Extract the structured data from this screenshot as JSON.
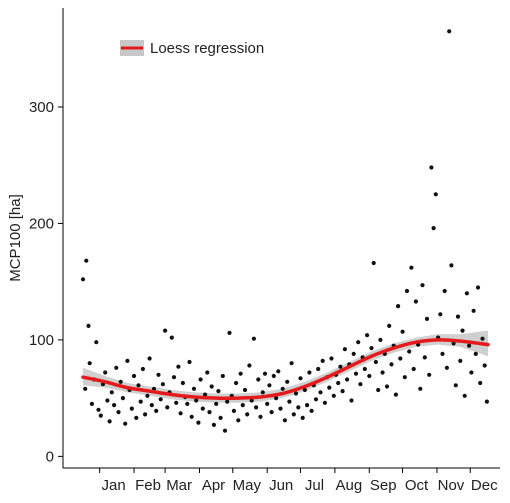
{
  "chart_data": {
    "type": "scatter",
    "ylabel": "MCP100 [ha]",
    "ylim": [
      -10,
      385
    ],
    "yticks": [
      0,
      100,
      200,
      300
    ],
    "x_domain": [
      0,
      365
    ],
    "x_ticks": [
      {
        "label": "Jan",
        "day": 15
      },
      {
        "label": "Feb",
        "day": 46
      },
      {
        "label": "Mar",
        "day": 74
      },
      {
        "label": "Apr",
        "day": 105
      },
      {
        "label": "May",
        "day": 135
      },
      {
        "label": "Jun",
        "day": 166
      },
      {
        "label": "Jul",
        "day": 196
      },
      {
        "label": "Aug",
        "day": 227
      },
      {
        "label": "Sep",
        "day": 258
      },
      {
        "label": "Oct",
        "day": 288
      },
      {
        "label": "Nov",
        "day": 319
      },
      {
        "label": "Dec",
        "day": 349
      }
    ],
    "legend": {
      "label": "Loess regression",
      "position": "top-left"
    },
    "colors": {
      "points": "#111111",
      "loess_line": "#e41a1c",
      "confidence_band": "#c8c8c8"
    },
    "loess": [
      {
        "day": 0,
        "y": 68,
        "lo": 61,
        "hi": 76
      },
      {
        "day": 20,
        "y": 64,
        "lo": 59,
        "hi": 69
      },
      {
        "day": 40,
        "y": 59,
        "lo": 55,
        "hi": 63
      },
      {
        "day": 60,
        "y": 56,
        "lo": 52,
        "hi": 60
      },
      {
        "day": 80,
        "y": 53,
        "lo": 49,
        "hi": 57
      },
      {
        "day": 100,
        "y": 51,
        "lo": 47,
        "hi": 55
      },
      {
        "day": 120,
        "y": 50,
        "lo": 46,
        "hi": 54
      },
      {
        "day": 140,
        "y": 50,
        "lo": 46,
        "hi": 54
      },
      {
        "day": 160,
        "y": 51,
        "lo": 47,
        "hi": 55
      },
      {
        "day": 180,
        "y": 54,
        "lo": 50,
        "hi": 58
      },
      {
        "day": 200,
        "y": 60,
        "lo": 56,
        "hi": 64
      },
      {
        "day": 220,
        "y": 68,
        "lo": 64,
        "hi": 72
      },
      {
        "day": 240,
        "y": 77,
        "lo": 73,
        "hi": 81
      },
      {
        "day": 260,
        "y": 86,
        "lo": 82,
        "hi": 90
      },
      {
        "day": 280,
        "y": 93,
        "lo": 89,
        "hi": 97
      },
      {
        "day": 300,
        "y": 98,
        "lo": 94,
        "hi": 102
      },
      {
        "day": 320,
        "y": 100,
        "lo": 96,
        "hi": 105
      },
      {
        "day": 340,
        "y": 99,
        "lo": 94,
        "hi": 105
      },
      {
        "day": 365,
        "y": 96,
        "lo": 86,
        "hi": 108
      }
    ],
    "points": [
      [
        0,
        152
      ],
      [
        3,
        168
      ],
      [
        5,
        112
      ],
      [
        2,
        58
      ],
      [
        6,
        80
      ],
      [
        8,
        45
      ],
      [
        10,
        66
      ],
      [
        12,
        98
      ],
      [
        14,
        40
      ],
      [
        16,
        35
      ],
      [
        18,
        62
      ],
      [
        20,
        72
      ],
      [
        22,
        48
      ],
      [
        24,
        30
      ],
      [
        26,
        55
      ],
      [
        28,
        44
      ],
      [
        30,
        76
      ],
      [
        32,
        38
      ],
      [
        34,
        64
      ],
      [
        36,
        50
      ],
      [
        38,
        28
      ],
      [
        40,
        82
      ],
      [
        42,
        57
      ],
      [
        44,
        41
      ],
      [
        46,
        69
      ],
      [
        48,
        33
      ],
      [
        50,
        61
      ],
      [
        52,
        47
      ],
      [
        54,
        75
      ],
      [
        56,
        36
      ],
      [
        58,
        52
      ],
      [
        60,
        84
      ],
      [
        62,
        44
      ],
      [
        64,
        58
      ],
      [
        66,
        39
      ],
      [
        68,
        70
      ],
      [
        70,
        49
      ],
      [
        72,
        62
      ],
      [
        74,
        108
      ],
      [
        76,
        42
      ],
      [
        78,
        55
      ],
      [
        80,
        102
      ],
      [
        82,
        68
      ],
      [
        84,
        46
      ],
      [
        86,
        77
      ],
      [
        88,
        37
      ],
      [
        90,
        63
      ],
      [
        92,
        51
      ],
      [
        94,
        45
      ],
      [
        96,
        81
      ],
      [
        98,
        34
      ],
      [
        100,
        58
      ],
      [
        102,
        48
      ],
      [
        104,
        29
      ],
      [
        106,
        66
      ],
      [
        108,
        41
      ],
      [
        110,
        53
      ],
      [
        112,
        72
      ],
      [
        114,
        38
      ],
      [
        116,
        60
      ],
      [
        118,
        27
      ],
      [
        120,
        45
      ],
      [
        122,
        56
      ],
      [
        124,
        33
      ],
      [
        126,
        69
      ],
      [
        128,
        22
      ],
      [
        130,
        47
      ],
      [
        132,
        106
      ],
      [
        134,
        52
      ],
      [
        136,
        39
      ],
      [
        138,
        63
      ],
      [
        140,
        31
      ],
      [
        142,
        71
      ],
      [
        144,
        44
      ],
      [
        146,
        57
      ],
      [
        148,
        36
      ],
      [
        150,
        78
      ],
      [
        152,
        48
      ],
      [
        154,
        101
      ],
      [
        156,
        42
      ],
      [
        158,
        66
      ],
      [
        160,
        34
      ],
      [
        162,
        55
      ],
      [
        164,
        71
      ],
      [
        166,
        45
      ],
      [
        168,
        61
      ],
      [
        170,
        38
      ],
      [
        172,
        69
      ],
      [
        174,
        50
      ],
      [
        176,
        73
      ],
      [
        178,
        41
      ],
      [
        180,
        58
      ],
      [
        182,
        31
      ],
      [
        184,
        64
      ],
      [
        186,
        47
      ],
      [
        188,
        80
      ],
      [
        190,
        36
      ],
      [
        192,
        54
      ],
      [
        194,
        42
      ],
      [
        196,
        67
      ],
      [
        198,
        33
      ],
      [
        200,
        57
      ],
      [
        202,
        44
      ],
      [
        204,
        72
      ],
      [
        206,
        39
      ],
      [
        208,
        61
      ],
      [
        210,
        49
      ],
      [
        212,
        75
      ],
      [
        214,
        55
      ],
      [
        216,
        82
      ],
      [
        218,
        46
      ],
      [
        220,
        68
      ],
      [
        222,
        59
      ],
      [
        224,
        84
      ],
      [
        226,
        52
      ],
      [
        228,
        70
      ],
      [
        230,
        63
      ],
      [
        232,
        77
      ],
      [
        234,
        56
      ],
      [
        236,
        92
      ],
      [
        238,
        66
      ],
      [
        240,
        79
      ],
      [
        242,
        48
      ],
      [
        244,
        88
      ],
      [
        246,
        71
      ],
      [
        248,
        98
      ],
      [
        250,
        62
      ],
      [
        252,
        85
      ],
      [
        254,
        75
      ],
      [
        256,
        104
      ],
      [
        258,
        69
      ],
      [
        260,
        93
      ],
      [
        262,
        166
      ],
      [
        264,
        81
      ],
      [
        266,
        57
      ],
      [
        268,
        100
      ],
      [
        270,
        72
      ],
      [
        272,
        88
      ],
      [
        274,
        60
      ],
      [
        276,
        112
      ],
      [
        278,
        79
      ],
      [
        280,
        95
      ],
      [
        282,
        53
      ],
      [
        284,
        129
      ],
      [
        286,
        84
      ],
      [
        288,
        107
      ],
      [
        290,
        68
      ],
      [
        292,
        142
      ],
      [
        294,
        90
      ],
      [
        296,
        162
      ],
      [
        298,
        75
      ],
      [
        300,
        133
      ],
      [
        302,
        96
      ],
      [
        304,
        58
      ],
      [
        306,
        147
      ],
      [
        308,
        85
      ],
      [
        310,
        118
      ],
      [
        312,
        70
      ],
      [
        314,
        248
      ],
      [
        316,
        196
      ],
      [
        318,
        225
      ],
      [
        320,
        102
      ],
      [
        322,
        122
      ],
      [
        324,
        88
      ],
      [
        326,
        142
      ],
      [
        328,
        76
      ],
      [
        330,
        365
      ],
      [
        332,
        164
      ],
      [
        334,
        97
      ],
      [
        336,
        61
      ],
      [
        338,
        120
      ],
      [
        340,
        82
      ],
      [
        342,
        108
      ],
      [
        344,
        52
      ],
      [
        346,
        140
      ],
      [
        348,
        95
      ],
      [
        350,
        72
      ],
      [
        352,
        125
      ],
      [
        354,
        88
      ],
      [
        356,
        145
      ],
      [
        358,
        63
      ],
      [
        360,
        101
      ],
      [
        362,
        78
      ],
      [
        364,
        47
      ]
    ]
  }
}
